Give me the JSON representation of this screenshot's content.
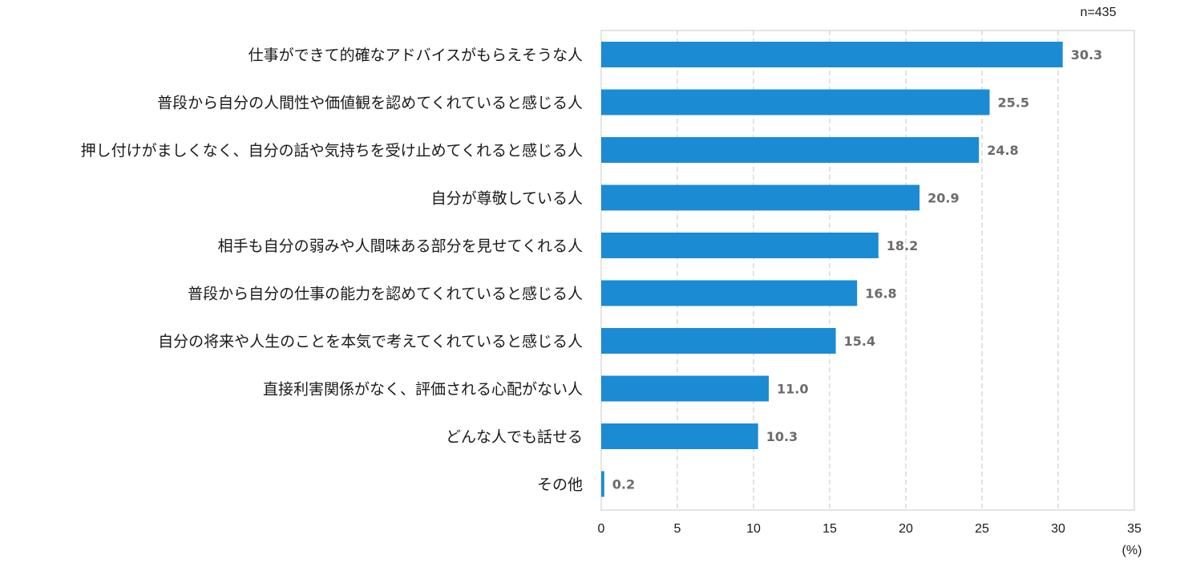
{
  "chart_data": {
    "type": "bar",
    "orientation": "horizontal",
    "sample_note": "n=435",
    "unit_label": "(%)",
    "categories": [
      "仕事ができて的確なアドバイスがもらえそうな人",
      "普段から自分の人間性や価値観を認めてくれていると感じる人",
      "押し付けがましくなく、自分の話や気持ちを受け止めてくれると感じる人",
      "自分が尊敬している人",
      "相手も自分の弱みや人間味ある部分を見せてくれる人",
      "普段から自分の仕事の能力を認めてくれていると感じる人",
      "自分の将来や人生のことを本気で考えてくれていると感じる人",
      "直接利害関係がなく、評価される心配がない人",
      "どんな人でも話せる",
      "その他"
    ],
    "values": [
      30.3,
      25.5,
      24.8,
      20.9,
      18.2,
      16.8,
      15.4,
      11.0,
      10.3,
      0.2
    ],
    "value_labels": [
      "30.3",
      "25.5",
      "24.8",
      "20.9",
      "18.2",
      "16.8",
      "15.4",
      "11.0",
      "10.3",
      "0.2"
    ],
    "xlim": [
      0,
      35
    ],
    "xticks": [
      0,
      5,
      10,
      15,
      20,
      25,
      30,
      35
    ],
    "grid": "vertical-dashed",
    "bar_color": "#1b8bd3",
    "gridline_color": "#cfcfcf",
    "frame_color": "#c9c9c9",
    "legend": "none"
  }
}
